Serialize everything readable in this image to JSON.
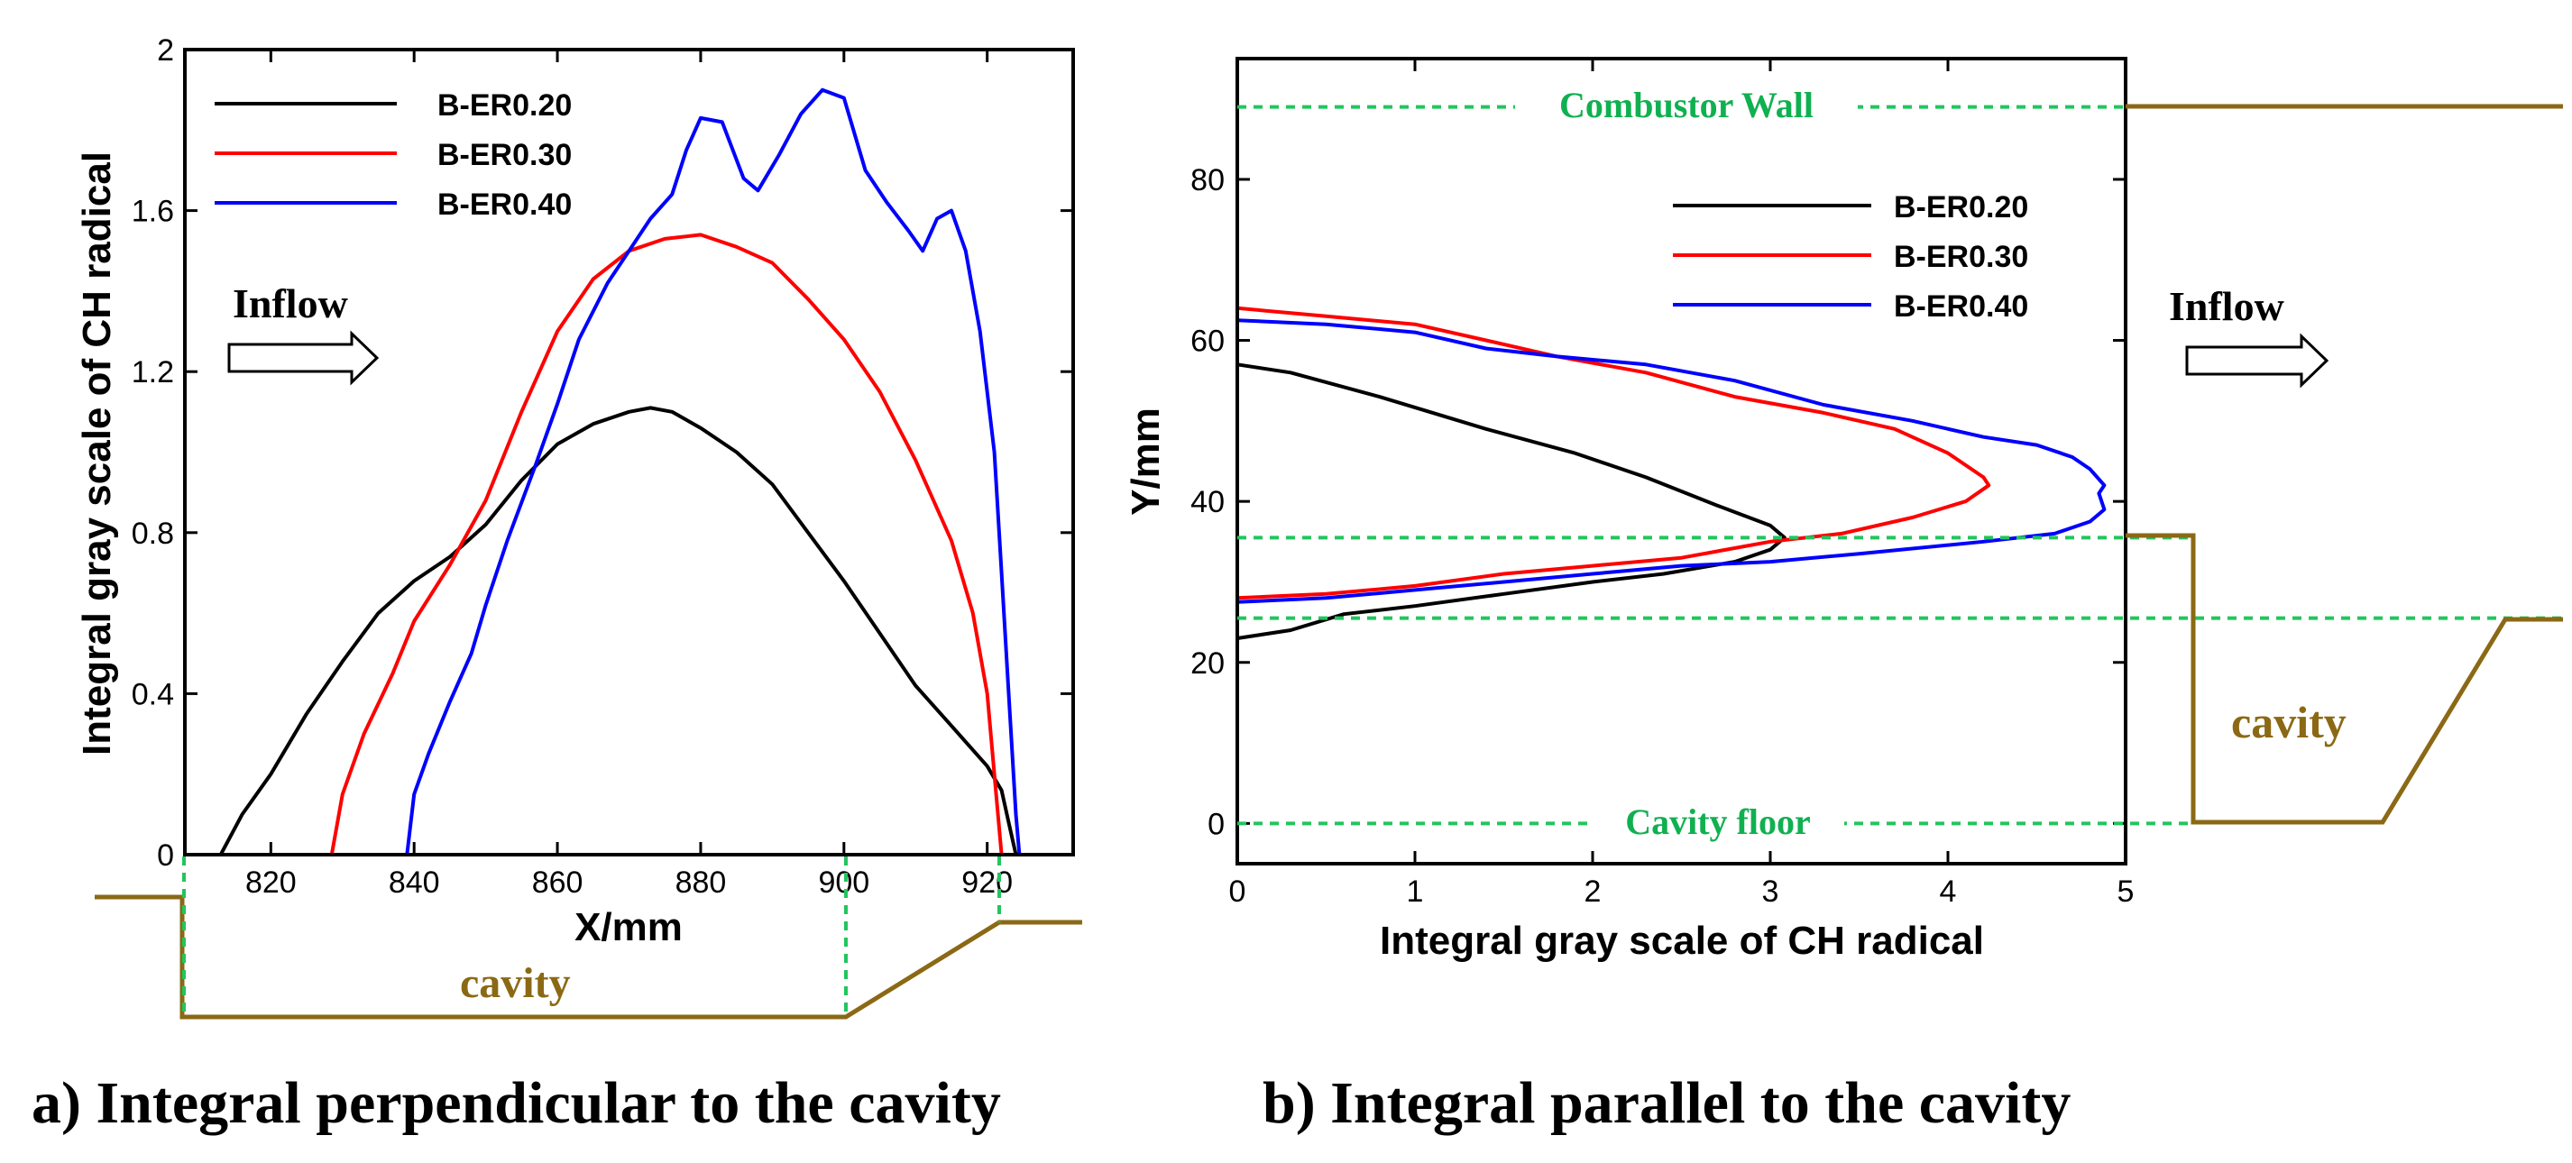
{
  "chart_data": [
    {
      "type": "line",
      "panel": "a",
      "caption": "a) Integral perpendicular to the cavity",
      "xlabel": "X/mm",
      "ylabel": "Integral gray scale of CH radical",
      "xlim": [
        808,
        932
      ],
      "ylim": [
        0,
        2
      ],
      "xticks": [
        820,
        840,
        860,
        880,
        900,
        920
      ],
      "yticks": [
        0,
        0.4,
        0.8,
        1.2,
        1.6,
        2
      ],
      "ytick_labels": [
        "0",
        "0.4",
        "0.8",
        "1.2",
        "1.6",
        "2"
      ],
      "legend": "top-left",
      "annotations": {
        "inflow": "Inflow",
        "cavity": "cavity"
      },
      "series": [
        {
          "name": "B-ER0.20",
          "color": "#000000",
          "x": [
            813,
            816,
            820,
            825,
            830,
            835,
            840,
            845,
            850,
            855,
            860,
            865,
            870,
            873,
            876,
            880,
            885,
            890,
            895,
            900,
            905,
            910,
            915,
            920,
            922,
            923,
            924
          ],
          "y": [
            0,
            0.1,
            0.2,
            0.35,
            0.48,
            0.6,
            0.68,
            0.74,
            0.82,
            0.93,
            1.02,
            1.07,
            1.1,
            1.11,
            1.1,
            1.06,
            1.0,
            0.92,
            0.8,
            0.68,
            0.55,
            0.42,
            0.32,
            0.22,
            0.16,
            0.08,
            0
          ]
        },
        {
          "name": "B-ER0.30",
          "color": "#ff0000",
          "x": [
            828.5,
            830,
            833,
            837,
            840,
            845,
            850,
            855,
            860,
            865,
            870,
            875,
            880,
            885,
            890,
            895,
            900,
            905,
            910,
            915,
            918,
            920,
            921,
            922
          ],
          "y": [
            0,
            0.15,
            0.3,
            0.45,
            0.58,
            0.72,
            0.88,
            1.1,
            1.3,
            1.43,
            1.5,
            1.53,
            1.54,
            1.51,
            1.47,
            1.38,
            1.28,
            1.15,
            0.98,
            0.78,
            0.6,
            0.4,
            0.2,
            0
          ]
        },
        {
          "name": "B-ER0.40",
          "color": "#0000ff",
          "x": [
            839,
            840,
            842,
            845,
            848,
            850,
            853,
            857,
            860,
            863,
            867,
            870,
            873,
            876,
            878,
            880,
            883,
            886,
            888,
            891,
            894,
            897,
            900,
            903,
            906,
            909,
            911,
            913,
            915,
            917,
            919,
            921,
            922,
            923,
            924,
            924.5
          ],
          "y": [
            0,
            0.15,
            0.25,
            0.38,
            0.5,
            0.62,
            0.78,
            0.97,
            1.12,
            1.28,
            1.42,
            1.5,
            1.58,
            1.64,
            1.75,
            1.83,
            1.82,
            1.68,
            1.65,
            1.74,
            1.84,
            1.9,
            1.88,
            1.7,
            1.62,
            1.55,
            1.5,
            1.58,
            1.6,
            1.5,
            1.3,
            1.0,
            0.7,
            0.4,
            0.1,
            0
          ]
        }
      ]
    },
    {
      "type": "line",
      "panel": "b",
      "caption": "b) Integral parallel to the cavity",
      "xlabel": "Integral gray scale of CH radical",
      "ylabel": "Y/mm",
      "xlim": [
        0,
        5
      ],
      "ylim": [
        -5,
        95
      ],
      "xticks": [
        0,
        1,
        2,
        3,
        4,
        5
      ],
      "yticks": [
        0,
        20,
        40,
        60,
        80
      ],
      "legend": "top-right",
      "annotations": {
        "wall": "Combustor Wall",
        "floor": "Cavity floor",
        "inflow": "Inflow",
        "cavity": "cavity"
      },
      "reference_lines": {
        "combustor_wall": 89,
        "cavity_edge": 35.5,
        "cavity_top": 25.5,
        "cavity_floor": 0
      },
      "series": [
        {
          "name": "B-ER0.20",
          "color": "#000000",
          "x": [
            0,
            0.3,
            0.8,
            1.4,
            1.9,
            2.3,
            2.7,
            3.0,
            3.08,
            3.0,
            2.8,
            2.4,
            2.0,
            1.5,
            1.0,
            0.6,
            0.3,
            0
          ],
          "y": [
            57,
            56,
            53,
            49,
            46,
            43,
            39.5,
            37,
            35.5,
            34,
            32.5,
            31,
            30,
            28.5,
            27,
            26,
            24,
            23
          ]
        },
        {
          "name": "B-ER0.30",
          "color": "#ff0000",
          "x": [
            0,
            0.5,
            1.0,
            1.4,
            1.8,
            2.3,
            2.8,
            3.3,
            3.7,
            4.0,
            4.2,
            4.23,
            4.1,
            3.8,
            3.4,
            3.0,
            2.5,
            2.0,
            1.5,
            1.0,
            0.5,
            0
          ],
          "y": [
            64,
            63,
            62,
            60,
            58,
            56,
            53,
            51,
            49,
            46,
            43,
            42,
            40,
            38,
            36,
            35,
            33,
            32,
            31,
            29.5,
            28.5,
            28
          ]
        },
        {
          "name": "B-ER0.40",
          "color": "#0000ff",
          "x": [
            0,
            0.5,
            1.0,
            1.4,
            1.8,
            2.3,
            2.8,
            3.3,
            3.8,
            4.2,
            4.5,
            4.7,
            4.8,
            4.88,
            4.85,
            4.88,
            4.8,
            4.6,
            4.2,
            3.5,
            3.0,
            2.5,
            2.0,
            1.5,
            1.0,
            0.5,
            0
          ],
          "y": [
            62.5,
            62,
            61,
            59,
            58,
            57,
            55,
            52,
            50,
            48,
            47,
            45.5,
            44,
            42,
            41,
            39,
            37.5,
            36,
            35,
            33.5,
            32.5,
            32,
            31,
            30,
            29,
            28,
            27.5
          ]
        }
      ]
    }
  ]
}
